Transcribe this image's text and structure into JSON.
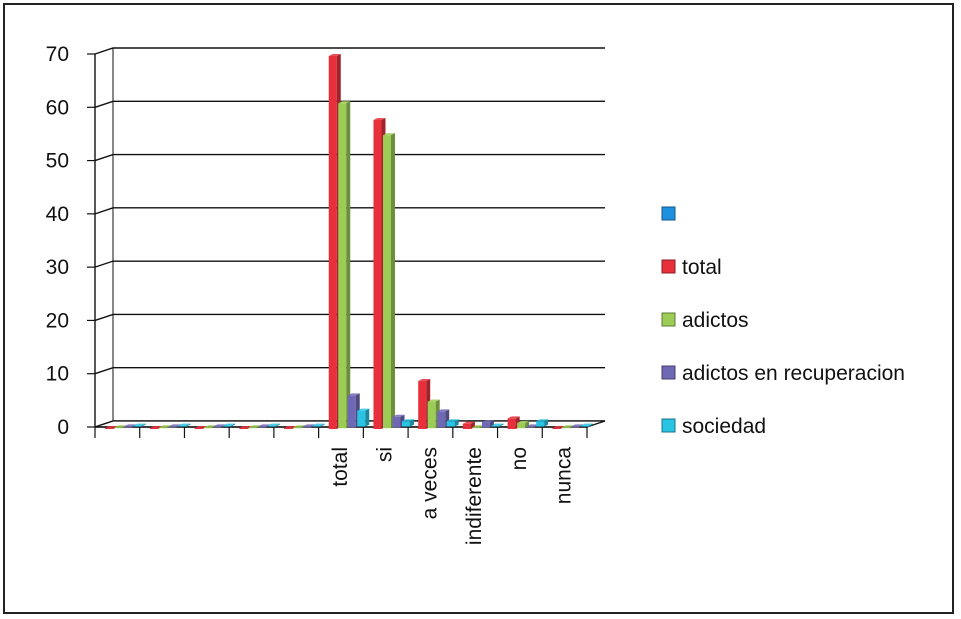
{
  "chart_data": {
    "type": "bar",
    "title": "",
    "xlabel": "",
    "ylabel": "",
    "ylim": [
      0,
      70
    ],
    "yticks": [
      0,
      10,
      20,
      30,
      40,
      50,
      60,
      70
    ],
    "grid": true,
    "legend_position": "right",
    "categories": [
      "",
      "",
      "",
      "",
      "",
      "total",
      "si",
      "a veces",
      "indiferente",
      "no",
      "nunca"
    ],
    "series": [
      {
        "name": "total",
        "color": "#e8303c",
        "values": [
          0,
          0,
          0,
          0,
          0,
          70,
          58,
          9,
          1,
          2,
          0
        ]
      },
      {
        "name": "adictos",
        "color": "#9ccc55",
        "values": [
          0,
          0,
          0,
          0,
          0,
          61,
          55,
          5,
          0,
          1,
          0
        ]
      },
      {
        "name": "adictos en recuperacion",
        "color": "#6f68b4",
        "values": [
          0,
          0,
          0,
          0,
          0,
          6,
          2,
          3,
          1,
          0,
          0
        ]
      },
      {
        "name": "sociedad",
        "color": "#29c3e3",
        "values": [
          0,
          0,
          0,
          0,
          0,
          3,
          1,
          1,
          0,
          1,
          0
        ]
      }
    ],
    "legend_entries": [
      {
        "label": "",
        "color": "#1e90e0"
      },
      {
        "label": "total",
        "color": "#e8303c"
      },
      {
        "label": "adictos",
        "color": "#9ccc55"
      },
      {
        "label": "adictos en recuperacion",
        "color": "#6f68b4"
      },
      {
        "label": "sociedad",
        "color": "#29c3e3"
      }
    ]
  }
}
